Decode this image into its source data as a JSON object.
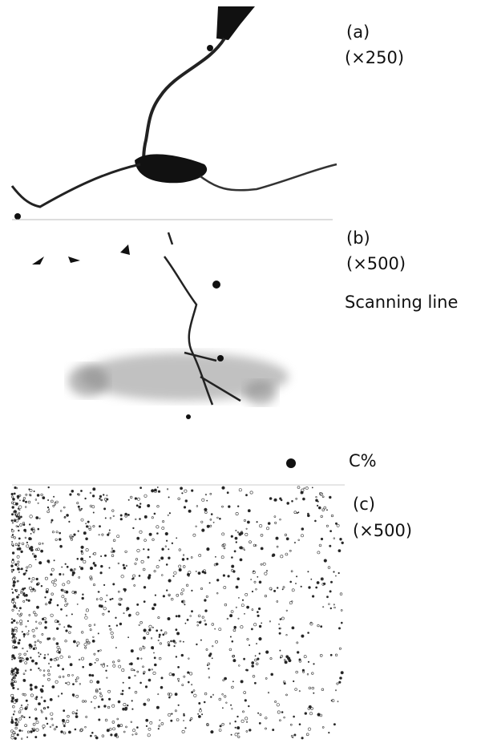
{
  "panels": [
    {
      "label": "(a)",
      "magnification": "(×250)"
    },
    {
      "label": "(b)",
      "magnification": "(×500)",
      "annotations": [
        "Scanning line",
        "C%"
      ]
    },
    {
      "label": "(c)",
      "magnification": "(×500)"
    }
  ]
}
